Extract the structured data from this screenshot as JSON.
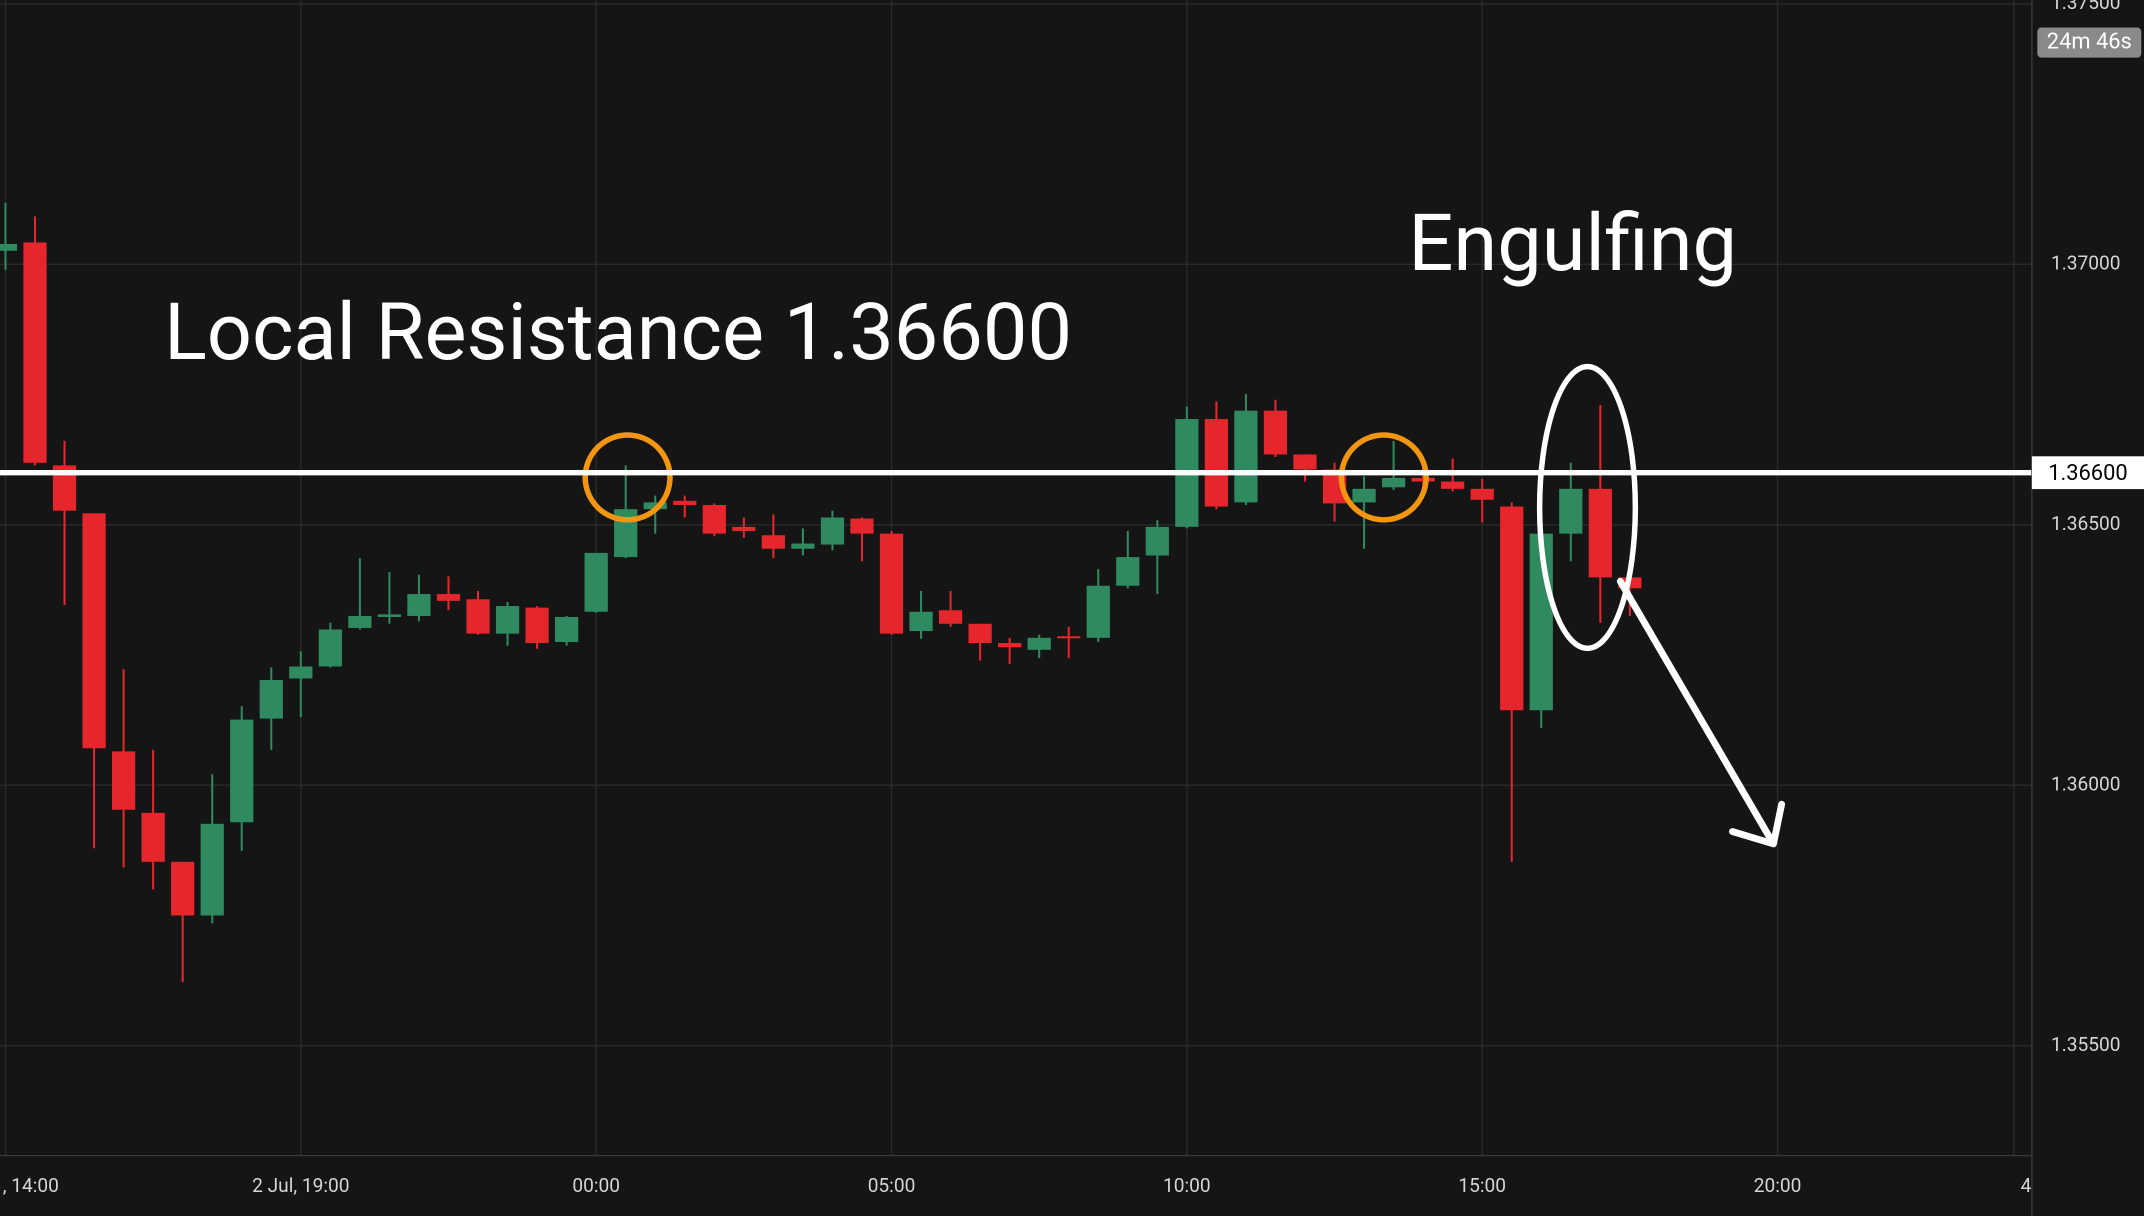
{
  "chart_data": {
    "type": "candlestick",
    "categories": [
      ", 14:00",
      null,
      null,
      null,
      null,
      null,
      null,
      null,
      null,
      null,
      "2 Jul, 19:00",
      null,
      null,
      null,
      null,
      null,
      null,
      null,
      null,
      null,
      "00:00",
      null,
      null,
      null,
      null,
      null,
      null,
      null,
      null,
      null,
      "05:00",
      null,
      null,
      null,
      null,
      null,
      null,
      null,
      null,
      null,
      "10:00",
      null,
      null,
      null,
      null,
      null,
      null,
      null,
      null,
      null,
      "15:00",
      null,
      null,
      null,
      null,
      null,
      null,
      null,
      null,
      null,
      "20:00",
      null,
      null,
      null,
      null,
      null,
      null,
      null,
      "4"
    ],
    "open": [
      1.37026,
      1.37042,
      1.36614,
      1.36522,
      1.36065,
      1.35947,
      1.35853,
      1.3575,
      1.35929,
      1.36128,
      1.36205,
      1.36228,
      1.36302,
      1.36323,
      1.36325,
      1.36367,
      1.36357,
      1.36291,
      1.36341,
      1.36275,
      1.36333,
      1.36438,
      1.3653,
      1.36546,
      1.36538,
      1.36496,
      1.3648,
      1.36454,
      1.36462,
      1.36512,
      1.36483,
      1.36296,
      1.36336,
      1.3631,
      1.36273,
      1.3626,
      1.36286,
      1.36283,
      1.36383,
      1.36441,
      1.36496,
      1.36703,
      1.36543,
      1.36719,
      1.36635,
      1.36606,
      1.36543,
      1.36572,
      1.3659,
      1.36583,
      1.36569,
      1.36535,
      1.36144,
      1.36483,
      1.36569,
      1.36399,
      null,
      null,
      null,
      null,
      null,
      null,
      null,
      null,
      null,
      null,
      null,
      null,
      null
    ],
    "high": [
      1.37118,
      1.37092,
      1.36661,
      1.36522,
      1.36223,
      1.36068,
      1.35853,
      1.36021,
      1.36152,
      1.36226,
      1.36257,
      1.36312,
      1.36436,
      1.36409,
      1.36404,
      1.36401,
      1.36373,
      1.36352,
      1.36344,
      1.36325,
      1.36446,
      1.36614,
      1.36556,
      1.36556,
      1.36541,
      1.36514,
      1.3652,
      1.36493,
      1.36527,
      1.36514,
      1.36488,
      1.36373,
      1.36373,
      1.3631,
      1.36283,
      1.36289,
      1.36304,
      1.36415,
      1.36488,
      1.36509,
      1.36727,
      1.36737,
      1.36751,
      1.3674,
      1.36635,
      1.36619,
      1.36593,
      1.36661,
      1.36609,
      1.36627,
      1.36588,
      1.36543,
      1.36506,
      1.36619,
      1.3673,
      1.36404,
      null,
      null,
      null,
      null,
      null,
      null,
      null,
      null,
      null,
      null,
      null,
      null,
      null
    ],
    "low": [
      1.36989,
      1.36614,
      1.36346,
      1.35879,
      1.35842,
      1.358,
      1.35622,
      1.35735,
      1.35874,
      1.36068,
      1.36131,
      1.36226,
      1.36299,
      1.3631,
      1.36315,
      1.36336,
      1.36289,
      1.36268,
      1.36262,
      1.36268,
      1.36331,
      1.36436,
      1.36483,
      1.36514,
      1.36478,
      1.36475,
      1.36436,
      1.36441,
      1.36451,
      1.3643,
      1.36289,
      1.36281,
      1.36304,
      1.36239,
      1.36233,
      1.36244,
      1.36244,
      1.36275,
      1.36378,
      1.36367,
      1.36493,
      1.3653,
      1.36538,
      1.3663,
      1.36583,
      1.36506,
      1.36454,
      1.36567,
      1.36567,
      1.36564,
      1.36504,
      1.35853,
      1.3611,
      1.3643,
      1.36312,
      1.36325,
      null,
      null,
      null,
      null,
      null,
      null,
      null,
      null,
      null,
      null,
      null,
      null,
      null
    ],
    "close": [
      1.37039,
      1.36619,
      1.36527,
      1.36071,
      1.35953,
      1.35853,
      1.3575,
      1.35926,
      1.36126,
      1.36202,
      1.36228,
      1.36299,
      1.36325,
      1.36328,
      1.36367,
      1.36354,
      1.36291,
      1.36344,
      1.36273,
      1.36323,
      1.36446,
      1.3653,
      1.36543,
      1.36538,
      1.36483,
      1.36488,
      1.36454,
      1.36464,
      1.36514,
      1.36483,
      1.36291,
      1.36333,
      1.3631,
      1.36273,
      1.36265,
      1.36283,
      1.36283,
      1.36383,
      1.36438,
      1.36496,
      1.36703,
      1.36535,
      1.36719,
      1.36635,
      1.36606,
      1.36541,
      1.36569,
      1.3659,
      1.36583,
      1.36569,
      1.36548,
      1.36144,
      1.36483,
      1.36569,
      1.36399,
      1.36378,
      null,
      null,
      null,
      null,
      null,
      null,
      null,
      null,
      null,
      null,
      null,
      null,
      null
    ],
    "up_color": "#2f8a5f",
    "down_color": "#e5262c",
    "ylim": [
      1.35289,
      1.37507
    ],
    "yticks": [
      {
        "value": 1.355,
        "label": "1.35500"
      },
      {
        "value": 1.36,
        "label": "1.36000"
      },
      {
        "value": 1.365,
        "label": "1.36500"
      },
      {
        "value": 1.37,
        "label": "1.37000"
      },
      {
        "value": 1.375,
        "label": "1.37500"
      }
    ],
    "grid": true,
    "resistance": {
      "value": 1.366,
      "label": "1.36600"
    },
    "countdown": "24m 46s",
    "annotations": [
      "Local Resistance 1.36600",
      "Engulfing"
    ]
  }
}
